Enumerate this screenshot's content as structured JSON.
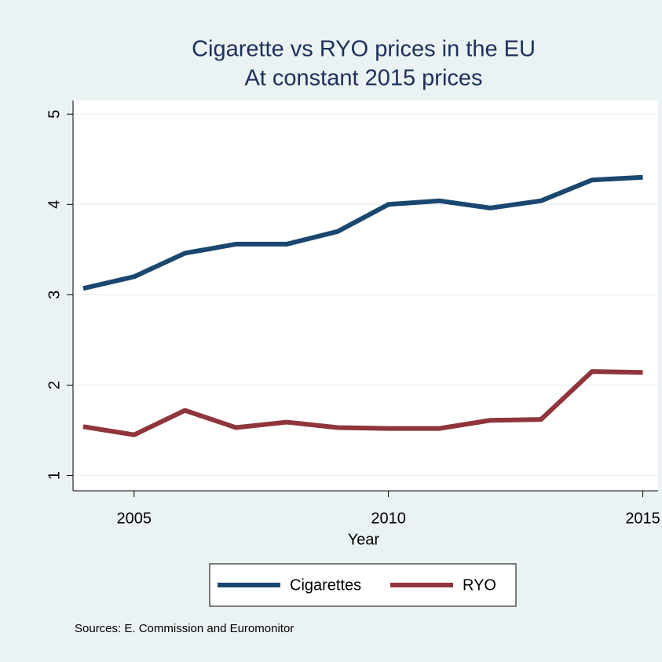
{
  "chart_data": {
    "type": "line",
    "title": "Cigarette vs RYO prices in the EU",
    "subtitle": "At constant 2015 prices",
    "x_label": "Year",
    "note": "Sources: E. Commission and Euromonitor",
    "x": [
      2004,
      2005,
      2006,
      2007,
      2008,
      2009,
      2010,
      2011,
      2012,
      2013,
      2014,
      2015
    ],
    "series": [
      {
        "name": "Cigarettes",
        "color": "#1a476f",
        "values": [
          3.07,
          3.2,
          3.46,
          3.56,
          3.56,
          3.7,
          4.0,
          4.04,
          3.96,
          4.04,
          4.27,
          4.3
        ]
      },
      {
        "name": "RYO",
        "color": "#90353b",
        "values": [
          1.54,
          1.45,
          1.72,
          1.53,
          1.59,
          1.53,
          1.52,
          1.52,
          1.61,
          1.62,
          2.15,
          2.14
        ]
      }
    ],
    "xlim": [
      2003.8,
      2015.3
    ],
    "xticks": [
      2005,
      2010,
      2015
    ],
    "ylim": [
      0.83,
      5.15
    ],
    "yticks": [
      1,
      2,
      3,
      4,
      5
    ],
    "grid": true
  }
}
